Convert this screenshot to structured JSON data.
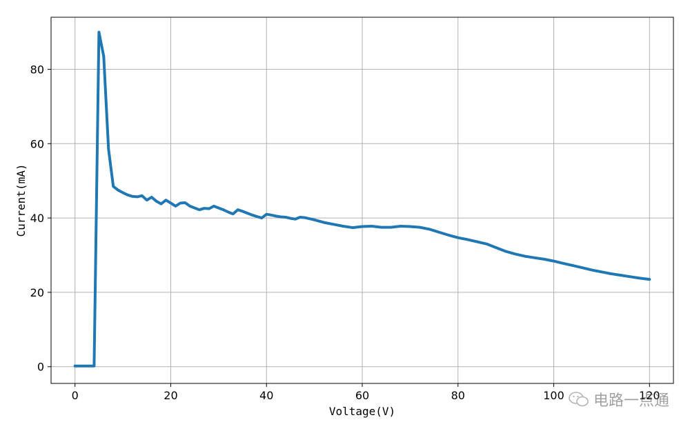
{
  "chart_data": {
    "type": "line",
    "title": "",
    "xlabel": "Voltage(V)",
    "ylabel": "Current(mA)",
    "xlim": [
      -5,
      125
    ],
    "ylim": [
      -4.5,
      94
    ],
    "xticks": [
      0,
      20,
      40,
      60,
      80,
      100,
      120
    ],
    "yticks": [
      0,
      20,
      40,
      60,
      80
    ],
    "grid": true,
    "series": [
      {
        "color": "#1f77b4",
        "x": [
          0,
          1,
          2,
          3,
          4,
          5,
          6,
          7,
          8,
          9,
          10,
          11,
          12,
          13,
          14,
          15,
          16,
          17,
          18,
          19,
          20,
          21,
          22,
          23,
          24,
          25,
          26,
          27,
          28,
          29,
          30,
          31,
          32,
          33,
          34,
          35,
          36,
          37,
          38,
          39,
          40,
          41,
          42,
          43,
          44,
          45,
          46,
          47,
          48,
          49,
          50,
          52,
          54,
          56,
          58,
          60,
          62,
          64,
          66,
          68,
          70,
          72,
          74,
          76,
          78,
          80,
          82,
          84,
          86,
          88,
          90,
          92,
          94,
          96,
          98,
          100,
          102,
          104,
          106,
          108,
          110,
          112,
          114,
          116,
          118,
          120
        ],
        "y": [
          0.2,
          0.2,
          0.2,
          0.2,
          0.2,
          90,
          83.5,
          58.5,
          48.5,
          47.5,
          46.8,
          46.2,
          45.8,
          45.7,
          46.0,
          44.8,
          45.6,
          44.5,
          43.8,
          44.8,
          44.0,
          43.2,
          44.0,
          44.1,
          43.2,
          42.7,
          42.2,
          42.6,
          42.5,
          43.2,
          42.7,
          42.2,
          41.6,
          41.1,
          42.2,
          41.8,
          41.3,
          40.8,
          40.4,
          40.0,
          41.0,
          40.8,
          40.5,
          40.3,
          40.2,
          39.9,
          39.7,
          40.2,
          40.1,
          39.8,
          39.5,
          38.8,
          38.3,
          37.8,
          37.4,
          37.7,
          37.8,
          37.5,
          37.5,
          37.8,
          37.7,
          37.5,
          37.0,
          36.2,
          35.4,
          34.7,
          34.2,
          33.6,
          33.0,
          32.0,
          31.0,
          30.3,
          29.7,
          29.3,
          28.9,
          28.4,
          27.8,
          27.2,
          26.6,
          26.0,
          25.5,
          25.0,
          24.6,
          24.2,
          23.8,
          23.5
        ]
      }
    ]
  },
  "watermark": {
    "text": "电路一点通",
    "icon": "wechat-icon"
  }
}
